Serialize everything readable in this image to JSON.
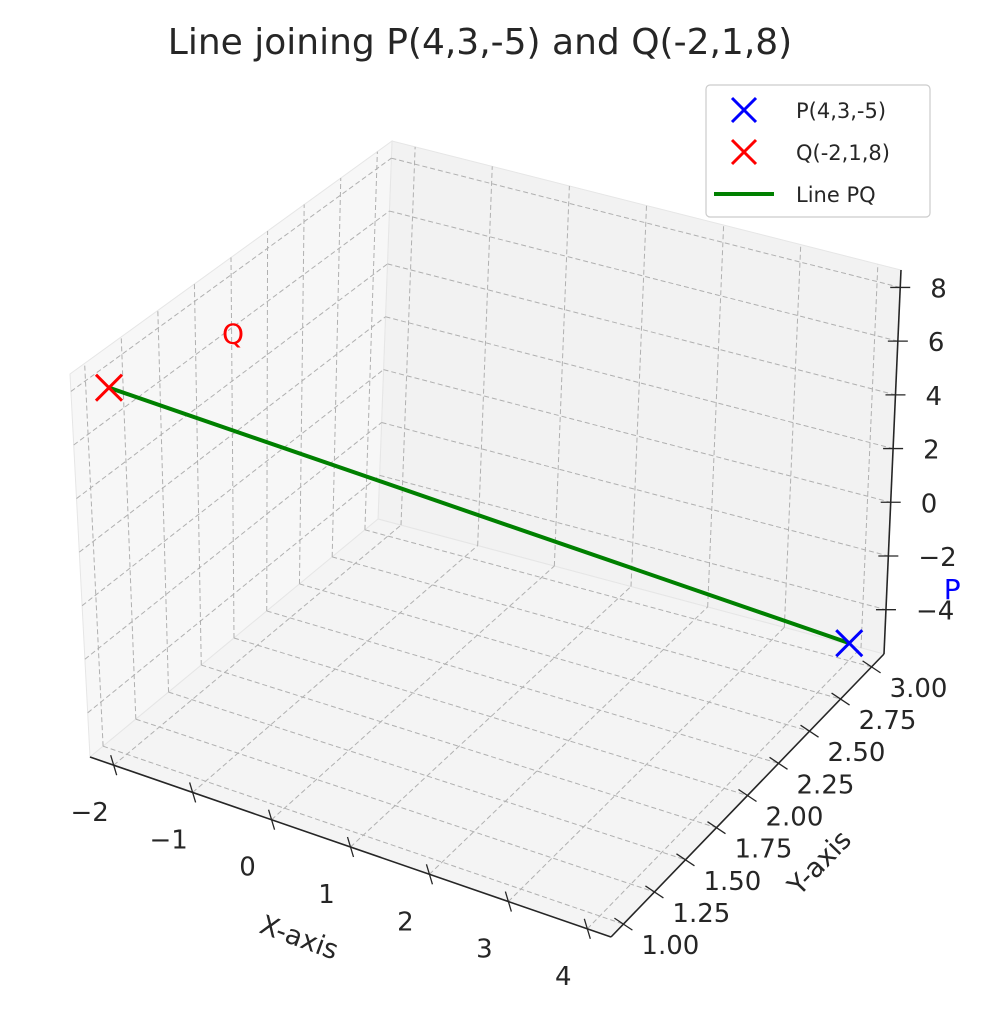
{
  "chart_data": {
    "type": "line",
    "projection": "3d",
    "title": "Line joining P(4,3,-5) and Q(-2,1,8)",
    "xlabel": "X-axis",
    "ylabel": "Y-axis",
    "zlabel": "",
    "xlim": [
      -2.3,
      4.3
    ],
    "ylim": [
      0.9,
      3.1
    ],
    "zlim": [
      -5.65,
      8.65
    ],
    "xticks": [
      -2,
      -1,
      0,
      1,
      2,
      3,
      4
    ],
    "xtick_labels": [
      "−2",
      "−1",
      "0",
      "1",
      "2",
      "3",
      "4"
    ],
    "yticks": [
      1.0,
      1.25,
      1.5,
      1.75,
      2.0,
      2.25,
      2.5,
      2.75,
      3.0
    ],
    "ytick_labels": [
      "1.00",
      "1.25",
      "1.50",
      "1.75",
      "2.00",
      "2.25",
      "2.50",
      "2.75",
      "3.00"
    ],
    "zticks": [
      -4,
      -2,
      0,
      2,
      4,
      6,
      8
    ],
    "ztick_labels": [
      "−4",
      "−2",
      "0",
      "2",
      "4",
      "6",
      "8"
    ],
    "grid": true,
    "legend_position": "top-right",
    "points": [
      {
        "name": "P(4,3,-5)",
        "label": "P",
        "x": 4,
        "y": 3,
        "z": -5,
        "color": "#0000ff",
        "marker": "x"
      },
      {
        "name": "Q(-2,1,8)",
        "label": "Q",
        "x": -2,
        "y": 1,
        "z": 8,
        "color": "#ff0000",
        "marker": "x"
      }
    ],
    "series": [
      {
        "name": "Line PQ",
        "color": "#008000",
        "x": [
          4,
          -2
        ],
        "y": [
          3,
          1
        ],
        "z": [
          -5,
          8
        ]
      }
    ]
  }
}
